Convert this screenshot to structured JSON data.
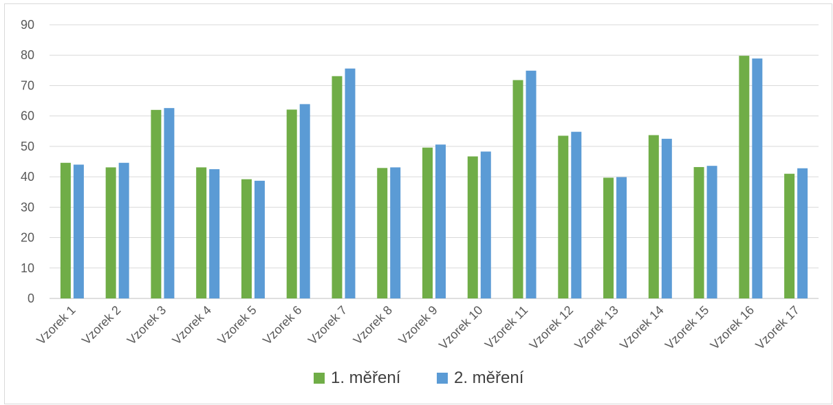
{
  "chart_data": {
    "type": "bar",
    "categories": [
      "Vzorek 1",
      "Vzorek 2",
      "Vzorek 3",
      "Vzorek 4",
      "Vzorek 5",
      "Vzorek 6",
      "Vzorek 7",
      "Vzorek 8",
      "Vzorek 9",
      "Vzorek 10",
      "Vzorek 11",
      "Vzorek 12",
      "Vzorek 13",
      "Vzorek 14",
      "Vzorek 15",
      "Vzorek 16",
      "Vzorek 17"
    ],
    "series": [
      {
        "name": "1. měření",
        "color": "#70ad47",
        "values": [
          44.6,
          43.1,
          62.0,
          43.1,
          39.2,
          62.1,
          73.1,
          42.9,
          49.6,
          46.7,
          71.8,
          53.5,
          39.7,
          53.7,
          43.2,
          79.8,
          41.0
        ]
      },
      {
        "name": "2. měření",
        "color": "#5b9bd5",
        "values": [
          44.0,
          44.6,
          62.6,
          42.5,
          38.7,
          63.9,
          75.6,
          43.1,
          50.6,
          48.3,
          74.9,
          54.8,
          39.9,
          52.5,
          43.6,
          78.9,
          42.8
        ]
      }
    ],
    "yticks": [
      "0",
      "10",
      "20",
      "30",
      "40",
      "50",
      "60",
      "70",
      "80",
      "90"
    ],
    "ylim": [
      0,
      90
    ],
    "grid": true,
    "legend_position": "bottom"
  }
}
